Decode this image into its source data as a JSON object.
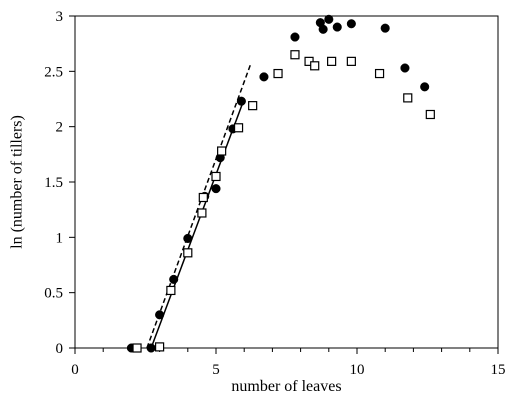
{
  "chart_data": {
    "type": "scatter",
    "xlabel": "number of leaves",
    "ylabel": "ln (number of tillers)",
    "xlim": [
      0,
      15
    ],
    "ylim": [
      0,
      3
    ],
    "xticks": [
      0,
      5,
      10,
      15
    ],
    "xtick_labels": [
      "0",
      "5",
      "10",
      "15"
    ],
    "yticks": [
      0,
      0.5,
      1,
      1.5,
      2,
      2.5,
      3
    ],
    "ytick_labels": [
      "0",
      "0.5",
      "1",
      "1.5",
      "2",
      "2.5",
      "3"
    ],
    "grid": false,
    "legend": "none",
    "series": [
      {
        "marker": "filled-circle",
        "color": "#000000",
        "points": [
          [
            2.0,
            0.0
          ],
          [
            2.7,
            0.0
          ],
          [
            3.0,
            0.3
          ],
          [
            3.5,
            0.62
          ],
          [
            4.0,
            0.99
          ],
          [
            4.6,
            1.37
          ],
          [
            5.0,
            1.44
          ],
          [
            5.15,
            1.72
          ],
          [
            5.6,
            1.98
          ],
          [
            5.9,
            2.23
          ],
          [
            6.7,
            2.45
          ],
          [
            7.8,
            2.81
          ],
          [
            8.7,
            2.94
          ],
          [
            8.8,
            2.88
          ],
          [
            9.0,
            2.97
          ],
          [
            9.3,
            2.9
          ],
          [
            9.8,
            2.93
          ],
          [
            11.0,
            2.89
          ],
          [
            11.7,
            2.53
          ],
          [
            12.4,
            2.36
          ]
        ]
      },
      {
        "marker": "open-square",
        "color": "#000000",
        "points": [
          [
            2.2,
            0.0
          ],
          [
            3.0,
            0.01
          ],
          [
            3.4,
            0.52
          ],
          [
            4.0,
            0.86
          ],
          [
            4.5,
            1.22
          ],
          [
            4.55,
            1.36
          ],
          [
            5.0,
            1.55
          ],
          [
            5.2,
            1.78
          ],
          [
            5.8,
            1.99
          ],
          [
            6.3,
            2.19
          ],
          [
            7.2,
            2.48
          ],
          [
            7.8,
            2.65
          ],
          [
            8.3,
            2.59
          ],
          [
            8.5,
            2.55
          ],
          [
            9.1,
            2.59
          ],
          [
            9.8,
            2.59
          ],
          [
            10.8,
            2.48
          ],
          [
            11.8,
            2.26
          ],
          [
            12.6,
            2.11
          ]
        ]
      }
    ],
    "lines": [
      {
        "style": "solid",
        "color": "#000000",
        "from": [
          2.7,
          0.0
        ],
        "to": [
          6.0,
          2.25
        ]
      },
      {
        "style": "dashed",
        "color": "#000000",
        "from": [
          2.55,
          0.0
        ],
        "to": [
          6.25,
          2.58
        ]
      }
    ]
  }
}
